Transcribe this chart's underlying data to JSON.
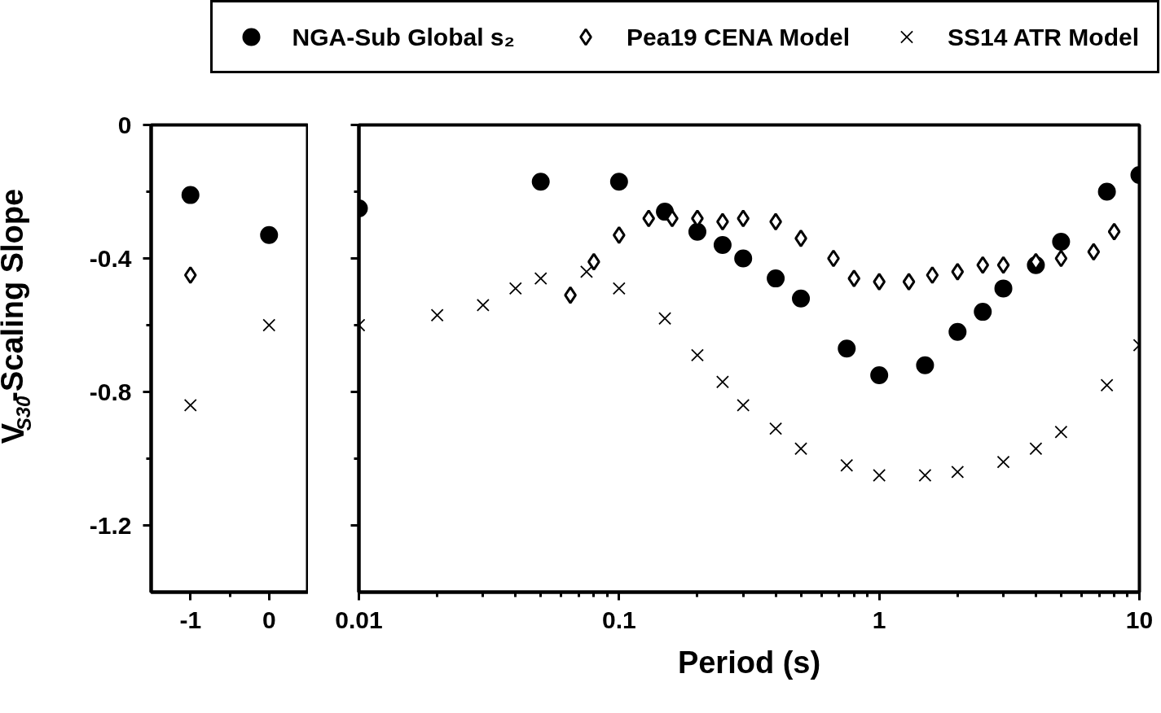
{
  "chart_data": [
    {
      "type": "scatter",
      "ylabel": "V$_{S30}$-Scaling Slope",
      "xlim": [
        -1.5,
        0.5
      ],
      "xticks": [
        -1,
        {
          "value": -0.5,
          "label": null
        },
        0
      ],
      "ylim": [
        -1.4,
        0
      ],
      "yticks": [
        0,
        {
          "value": -0.2,
          "label": null
        },
        -0.4,
        {
          "value": -0.6,
          "label": null
        },
        -0.8,
        {
          "value": -1.0,
          "label": null
        },
        -1.2
      ],
      "grid": false,
      "legend": false,
      "series": [
        {
          "marker": "circle",
          "color": "#000000",
          "x": [
            -1,
            0
          ],
          "values": [
            -0.21,
            -0.33
          ]
        },
        {
          "marker": "diamond",
          "color": "#000000",
          "x": [
            -1
          ],
          "values": [
            -0.45
          ]
        },
        {
          "marker": "cross",
          "color": "#000000",
          "x": [
            -1,
            0
          ],
          "values": [
            -0.84,
            -0.6
          ]
        }
      ]
    },
    {
      "type": "scatter",
      "xlabel": "Period (s)",
      "log": "x",
      "xlim": [
        0.01,
        10
      ],
      "xticks": [
        0.01,
        0.1,
        1,
        10
      ],
      "ylim": [
        -1.4,
        0
      ],
      "yticks": [
        0,
        {
          "value": -0.2,
          "label": null
        },
        -0.4,
        {
          "value": -0.6,
          "label": null
        },
        -0.8,
        {
          "value": -1.0,
          "label": null
        },
        -1.2
      ],
      "tick_labels": "x",
      "grid": false,
      "legend": "top",
      "series": [
        {
          "name": "NGA-Sub Global s₂",
          "marker": "circle",
          "color": "#000000",
          "x": [
            0.01,
            0.05,
            0.1,
            0.15,
            0.2,
            0.25,
            0.3,
            0.4,
            0.5,
            0.75,
            1,
            1.5,
            2,
            2.5,
            3,
            4,
            5,
            7.5,
            10
          ],
          "values": [
            -0.25,
            -0.17,
            -0.17,
            -0.26,
            -0.32,
            -0.36,
            -0.4,
            -0.46,
            -0.52,
            -0.67,
            -0.75,
            -0.72,
            -0.62,
            -0.56,
            -0.49,
            -0.42,
            -0.35,
            -0.2,
            -0.15
          ]
        },
        {
          "name": "Pea19 CENA Model",
          "marker": "diamond",
          "color": "#000000",
          "x": [
            0.065,
            0.08,
            0.1,
            0.13,
            0.16,
            0.2,
            0.25,
            0.3,
            0.4,
            0.5,
            0.667,
            0.8,
            1,
            1.3,
            1.6,
            2,
            2.5,
            3,
            4,
            5,
            6.67,
            8
          ],
          "values": [
            -0.51,
            -0.41,
            -0.33,
            -0.28,
            -0.28,
            -0.28,
            -0.29,
            -0.28,
            -0.29,
            -0.34,
            -0.4,
            -0.46,
            -0.47,
            -0.47,
            -0.45,
            -0.44,
            -0.42,
            -0.42,
            -0.41,
            -0.4,
            -0.38,
            -0.32
          ]
        },
        {
          "name": "SS14 ATR Model",
          "marker": "cross",
          "color": "#000000",
          "x": [
            0.01,
            0.02,
            0.03,
            0.04,
            0.05,
            0.075,
            0.1,
            0.15,
            0.2,
            0.25,
            0.3,
            0.4,
            0.5,
            0.75,
            1,
            1.5,
            2,
            3,
            4,
            5,
            7.5,
            10
          ],
          "values": [
            -0.6,
            -0.57,
            -0.54,
            -0.49,
            -0.46,
            -0.44,
            -0.49,
            -0.58,
            -0.69,
            -0.77,
            -0.84,
            -0.91,
            -0.97,
            -1.02,
            -1.05,
            -1.05,
            -1.04,
            -1.01,
            -0.97,
            -0.92,
            -0.78,
            -0.66
          ]
        }
      ]
    }
  ]
}
